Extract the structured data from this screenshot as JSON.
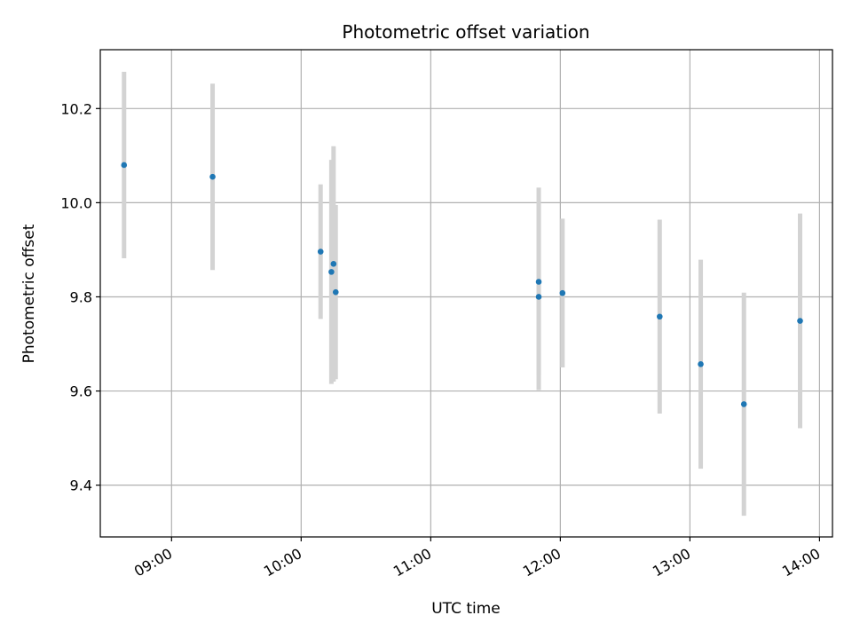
{
  "chart_data": {
    "type": "scatter",
    "title": "Photometric offset variation",
    "xlabel": "UTC time",
    "ylabel": "Photometric offset",
    "xlim": [
      "08:27",
      "14:06"
    ],
    "ylim": [
      9.29,
      10.325
    ],
    "grid": true,
    "x_ticks": [
      "09:00",
      "10:00",
      "11:00",
      "12:00",
      "13:00",
      "14:00"
    ],
    "y_ticks": [
      9.4,
      9.6,
      9.8,
      10.0,
      10.2
    ],
    "y_tick_labels": [
      "9.4",
      "9.6",
      "9.8",
      "10.0",
      "10.2"
    ],
    "series": [
      {
        "type": "errorbar",
        "marker_color": "#1f77b4",
        "errorbar_color": "#d3d3d3",
        "points": [
          {
            "x": "08:38",
            "y": 10.08,
            "err": 0.198
          },
          {
            "x": "09:19",
            "y": 10.055,
            "err": 0.198
          },
          {
            "x": "10:09",
            "y": 9.896,
            "err": 0.143
          },
          {
            "x": "10:14",
            "y": 9.853,
            "err": 0.238
          },
          {
            "x": "10:15",
            "y": 9.87,
            "err": 0.25
          },
          {
            "x": "10:16",
            "y": 9.81,
            "err": 0.185
          },
          {
            "x": "11:50",
            "y": 9.832,
            "err": 0.2
          },
          {
            "x": "11:50",
            "y": 9.8,
            "err": 0.198
          },
          {
            "x": "12:01",
            "y": 9.808,
            "err": 0.158
          },
          {
            "x": "12:46",
            "y": 9.758,
            "err": 0.206
          },
          {
            "x": "13:05",
            "y": 9.657,
            "err": 0.222
          },
          {
            "x": "13:25",
            "y": 9.572,
            "err": 0.237
          },
          {
            "x": "13:51",
            "y": 9.749,
            "err": 0.228
          }
        ]
      }
    ]
  }
}
